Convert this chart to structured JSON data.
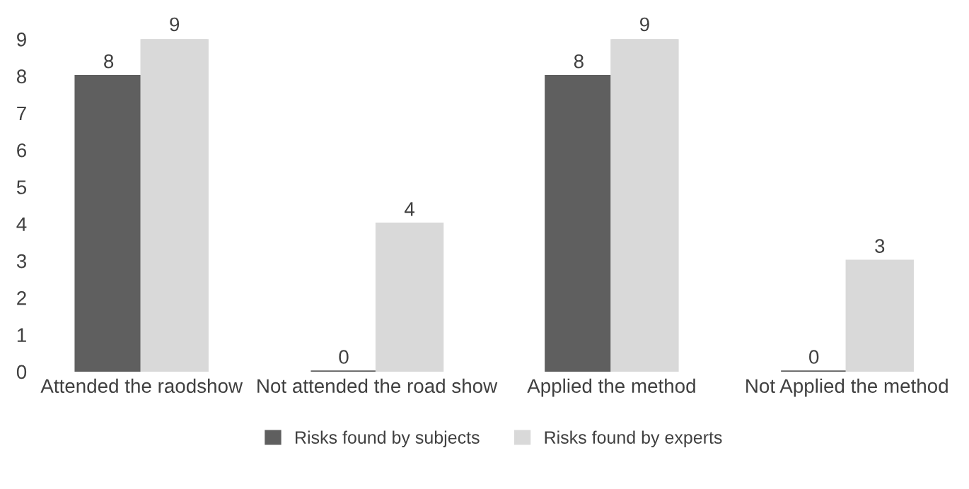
{
  "chart_data": {
    "type": "bar",
    "categories": [
      "Attended the raodshow",
      "Not attended the road show",
      "Applied the method",
      "Not Applied the method"
    ],
    "series": [
      {
        "name": "Risks found by subjects",
        "color": "#5f5f5f",
        "values": [
          8,
          0,
          8,
          0
        ]
      },
      {
        "name": "Risks found by experts",
        "color": "#d9d9d9",
        "values": [
          9,
          4,
          9,
          3
        ]
      }
    ],
    "ylim": [
      0,
      9
    ],
    "yticks": [
      0,
      1,
      2,
      3,
      4,
      5,
      6,
      7,
      8,
      9
    ],
    "data_labels": true,
    "grid": false,
    "legend": "bottom"
  }
}
